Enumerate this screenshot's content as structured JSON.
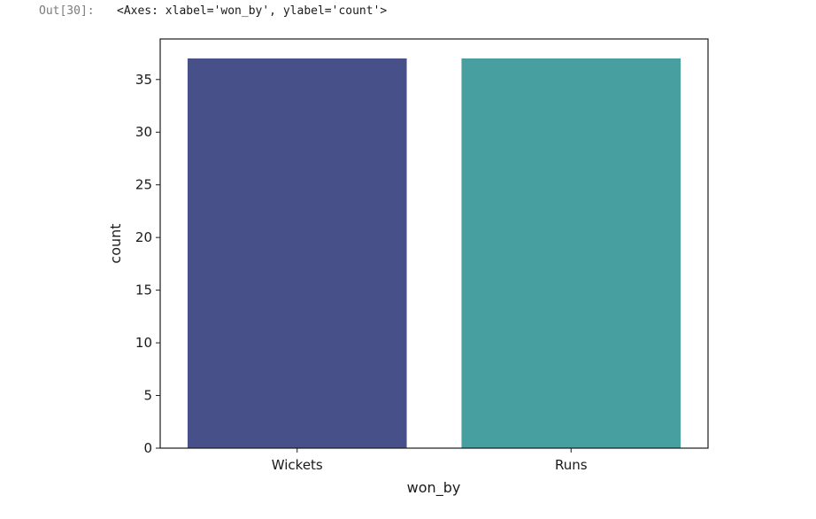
{
  "output": {
    "prompt": "Out[30]:",
    "text": "<Axes: xlabel='won_by', ylabel='count'>"
  },
  "chart_data": {
    "type": "bar",
    "categories": [
      "Wickets",
      "Runs"
    ],
    "values": [
      37,
      37
    ],
    "colors": [
      "#48508a",
      "#489f9f"
    ],
    "xlabel": "won_by",
    "ylabel": "count",
    "ylim": [
      0,
      38.85
    ],
    "yticks": [
      0,
      5,
      10,
      15,
      20,
      25,
      30,
      35
    ],
    "grid": false,
    "legend": "none"
  }
}
